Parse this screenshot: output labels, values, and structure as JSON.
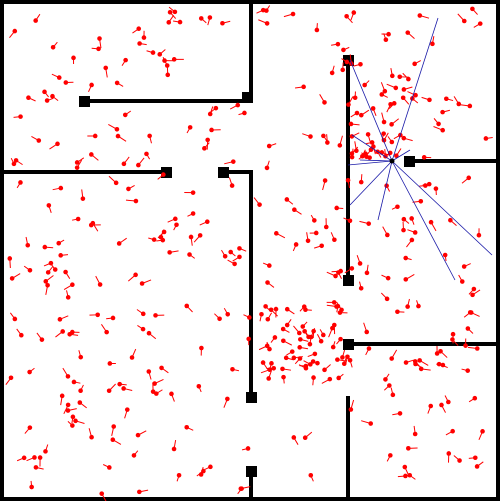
{
  "simulation": {
    "particle_count": 420,
    "colors": {
      "background": "#ffffff",
      "walls": "#000000",
      "particles": "#ff0000",
      "laser_rays": "#0000aa",
      "robot": "#000000"
    },
    "laser_ray_count": 10
  }
}
